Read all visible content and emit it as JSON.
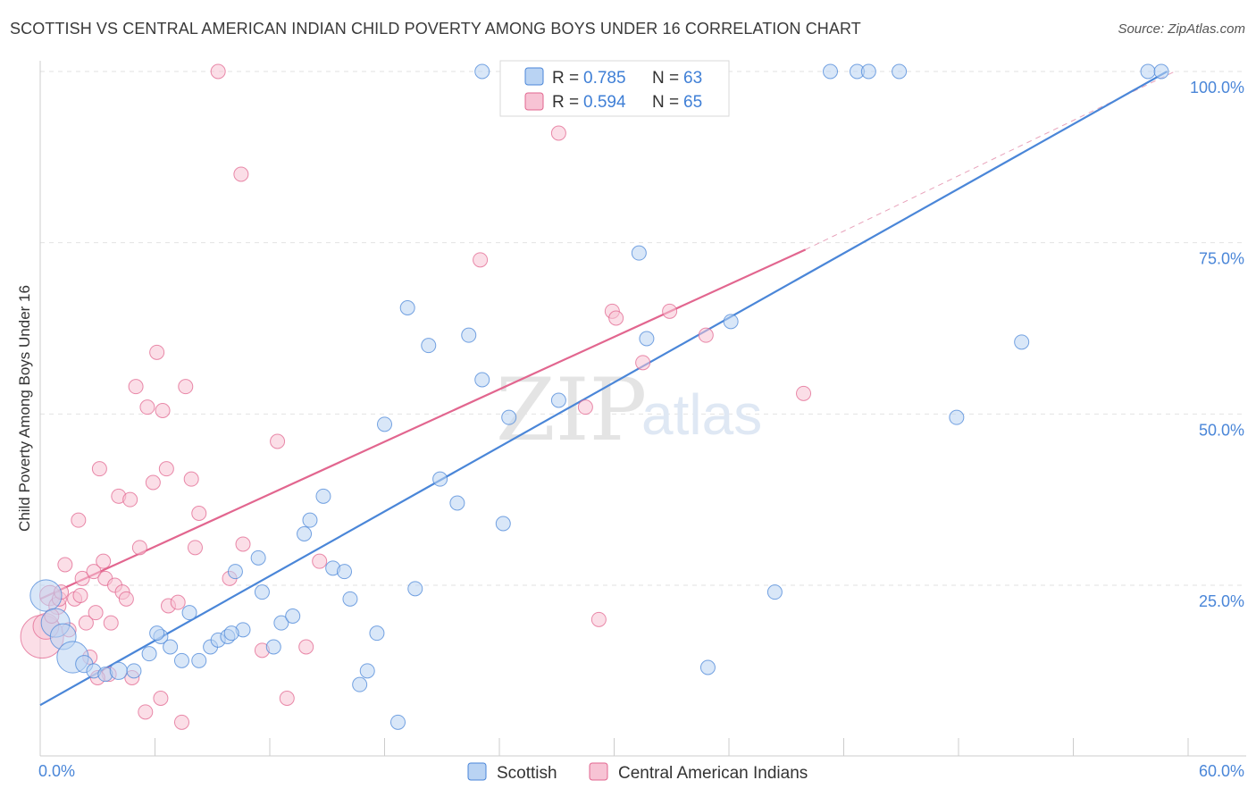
{
  "title": "SCOTTISH VS CENTRAL AMERICAN INDIAN CHILD POVERTY AMONG BOYS UNDER 16 CORRELATION CHART",
  "source": "Source: ZipAtlas.com",
  "watermark": {
    "zip": "ZIP",
    "atlas": "atlas"
  },
  "colors": {
    "scottish": "#4a86d8",
    "scottish_fill": "#b9d3f3",
    "central": "#e2668f",
    "central_fill": "#f7c3d4",
    "axis_label": "#4a86d8"
  },
  "legend_top": {
    "r_label": "R =",
    "n_label": "N =",
    "scottish": {
      "r": "0.785",
      "n": "63"
    },
    "central": {
      "r": "0.594",
      "n": "65"
    }
  },
  "chart_data": {
    "type": "scatter",
    "title": "SCOTTISH VS CENTRAL AMERICAN INDIAN CHILD POVERTY AMONG BOYS UNDER 16 CORRELATION CHART",
    "xlabel": "",
    "ylabel": "Child Poverty Among Boys Under 16",
    "xlim": [
      0,
      60
    ],
    "ylim": [
      0,
      105
    ],
    "x_tick_labels": [
      "0.0%",
      "60.0%"
    ],
    "y_tick_labels": [
      "25.0%",
      "50.0%",
      "75.0%",
      "100.0%"
    ],
    "y_ticks": [
      25,
      50,
      75,
      100
    ],
    "grid": true,
    "legend_position": "top-center and bottom",
    "series": [
      {
        "name": "Scottish",
        "color": "#4a86d8",
        "r": 0.785,
        "n": 63,
        "trend": {
          "x0": 0,
          "y0": 7.5,
          "x1": 58.9,
          "y1": 100
        },
        "points": [
          [
            0.3,
            23.5,
            2.2
          ],
          [
            0.8,
            19.5,
            2.0
          ],
          [
            1.2,
            17.5,
            1.8
          ],
          [
            1.7,
            14.5,
            2.2
          ],
          [
            2.3,
            13.5,
            1.2
          ],
          [
            2.8,
            12.5,
            1.0
          ],
          [
            3.4,
            12.0,
            1.0
          ],
          [
            4.1,
            12.5,
            1.2
          ],
          [
            4.9,
            12.5,
            1.0
          ],
          [
            5.7,
            15.0,
            1.0
          ],
          [
            6.3,
            17.5,
            1.0
          ],
          [
            6.8,
            16.0,
            1.0
          ],
          [
            7.4,
            14.0,
            1.0
          ],
          [
            7.8,
            21.0,
            1.0
          ],
          [
            8.3,
            14.0,
            1.0
          ],
          [
            8.9,
            16.0,
            1.0
          ],
          [
            9.3,
            17.0,
            1.0
          ],
          [
            9.8,
            17.5,
            1.0
          ],
          [
            10.2,
            27.0,
            1.0
          ],
          [
            10.6,
            18.5,
            1.0
          ],
          [
            11.4,
            29.0,
            1.0
          ],
          [
            11.6,
            24.0,
            1.0
          ],
          [
            12.2,
            16.0,
            1.0
          ],
          [
            12.6,
            19.5,
            1.0
          ],
          [
            13.2,
            20.5,
            1.0
          ],
          [
            13.8,
            32.5,
            1.0
          ],
          [
            14.1,
            34.5,
            1.0
          ],
          [
            14.8,
            38.0,
            1.0
          ],
          [
            15.3,
            27.5,
            1.0
          ],
          [
            15.9,
            27.0,
            1.0
          ],
          [
            16.2,
            23.0,
            1.0
          ],
          [
            16.7,
            10.5,
            1.0
          ],
          [
            17.1,
            12.5,
            1.0
          ],
          [
            17.6,
            18.0,
            1.0
          ],
          [
            18.0,
            48.5,
            1.0
          ],
          [
            18.7,
            5.0,
            1.0
          ],
          [
            19.2,
            65.5,
            1.0
          ],
          [
            19.6,
            24.5,
            1.0
          ],
          [
            20.3,
            60.0,
            1.0
          ],
          [
            20.9,
            40.5,
            1.0
          ],
          [
            21.8,
            37.0,
            1.0
          ],
          [
            22.4,
            61.5,
            1.0
          ],
          [
            23.1,
            55.0,
            1.0
          ],
          [
            23.1,
            100.0,
            1.0
          ],
          [
            24.2,
            34.0,
            1.0
          ],
          [
            24.5,
            49.5,
            1.0
          ],
          [
            26.7,
            100.0,
            1.0
          ],
          [
            27.1,
            52.0,
            1.0
          ],
          [
            31.3,
            73.5,
            1.0
          ],
          [
            31.7,
            61.0,
            1.0
          ],
          [
            34.9,
            13.0,
            1.0
          ],
          [
            36.1,
            63.5,
            1.0
          ],
          [
            38.4,
            24.0,
            1.0
          ],
          [
            41.3,
            100.0,
            1.0
          ],
          [
            42.7,
            100.0,
            1.0
          ],
          [
            43.3,
            100.0,
            1.0
          ],
          [
            44.9,
            100.0,
            1.0
          ],
          [
            47.9,
            49.5,
            1.0
          ],
          [
            51.3,
            60.5,
            1.0
          ],
          [
            57.9,
            100.0,
            1.0
          ],
          [
            58.6,
            100.0,
            1.0
          ],
          [
            6.1,
            18.0,
            1.0
          ],
          [
            10.0,
            18.0,
            1.0
          ]
        ]
      },
      {
        "name": "Central American Indians",
        "color": "#e2668f",
        "r": 0.594,
        "n": 65,
        "trend": {
          "x0": 0,
          "y0": 23.0,
          "x1": 40.0,
          "y1": 74.0
        },
        "points": [
          [
            0.1,
            17.5,
            3.0
          ],
          [
            0.3,
            19.0,
            1.8
          ],
          [
            0.5,
            23.5,
            1.4
          ],
          [
            0.9,
            22.0,
            1.2
          ],
          [
            1.0,
            23.0,
            1.0
          ],
          [
            1.3,
            28.0,
            1.0
          ],
          [
            1.5,
            18.5,
            1.0
          ],
          [
            1.8,
            23.0,
            1.0
          ],
          [
            2.0,
            34.5,
            1.0
          ],
          [
            2.1,
            23.5,
            1.0
          ],
          [
            2.2,
            26.0,
            1.0
          ],
          [
            2.4,
            19.5,
            1.0
          ],
          [
            2.6,
            14.5,
            1.0
          ],
          [
            2.8,
            27.0,
            1.0
          ],
          [
            2.9,
            21.0,
            1.0
          ],
          [
            3.1,
            42.0,
            1.0
          ],
          [
            3.3,
            28.5,
            1.0
          ],
          [
            3.4,
            26.0,
            1.0
          ],
          [
            3.6,
            12.0,
            1.0
          ],
          [
            3.7,
            19.5,
            1.0
          ],
          [
            3.9,
            25.0,
            1.0
          ],
          [
            4.1,
            38.0,
            1.0
          ],
          [
            4.3,
            24.0,
            1.0
          ],
          [
            4.5,
            23.0,
            1.0
          ],
          [
            4.7,
            37.5,
            1.0
          ],
          [
            4.8,
            11.5,
            1.0
          ],
          [
            5.0,
            54.0,
            1.0
          ],
          [
            5.2,
            30.5,
            1.0
          ],
          [
            5.5,
            6.5,
            1.0
          ],
          [
            5.6,
            51.0,
            1.0
          ],
          [
            5.9,
            40.0,
            1.0
          ],
          [
            6.1,
            59.0,
            1.0
          ],
          [
            6.3,
            8.5,
            1.0
          ],
          [
            6.4,
            50.5,
            1.0
          ],
          [
            6.6,
            42.0,
            1.0
          ],
          [
            6.7,
            22.0,
            1.0
          ],
          [
            7.2,
            22.5,
            1.0
          ],
          [
            7.4,
            5.0,
            1.0
          ],
          [
            7.6,
            54.0,
            1.0
          ],
          [
            7.9,
            40.5,
            1.0
          ],
          [
            8.1,
            30.5,
            1.0
          ],
          [
            8.3,
            35.5,
            1.0
          ],
          [
            9.3,
            100.0,
            1.0
          ],
          [
            9.9,
            26.0,
            1.0
          ],
          [
            10.5,
            85.0,
            1.0
          ],
          [
            10.6,
            31.0,
            1.0
          ],
          [
            11.6,
            15.5,
            1.0
          ],
          [
            12.4,
            46.0,
            1.0
          ],
          [
            12.9,
            8.5,
            1.0
          ],
          [
            13.9,
            16.0,
            1.0
          ],
          [
            14.6,
            28.5,
            1.0
          ],
          [
            23.0,
            72.5,
            1.0
          ],
          [
            27.1,
            91.0,
            1.0
          ],
          [
            28.5,
            51.0,
            1.0
          ],
          [
            29.2,
            20.0,
            1.0
          ],
          [
            29.9,
            65.0,
            1.0
          ],
          [
            30.1,
            64.0,
            1.0
          ],
          [
            31.5,
            57.5,
            1.0
          ],
          [
            32.9,
            65.0,
            1.0
          ],
          [
            34.8,
            61.5,
            1.0
          ],
          [
            39.9,
            53.0,
            1.0
          ],
          [
            31.3,
            100.0,
            1.0
          ],
          [
            0.6,
            20.5,
            1.0
          ],
          [
            1.1,
            24.0,
            1.0
          ],
          [
            3.0,
            11.5,
            1.0
          ]
        ]
      }
    ]
  },
  "bottom_legend": [
    {
      "label": "Scottish"
    },
    {
      "label": "Central American Indians"
    }
  ]
}
